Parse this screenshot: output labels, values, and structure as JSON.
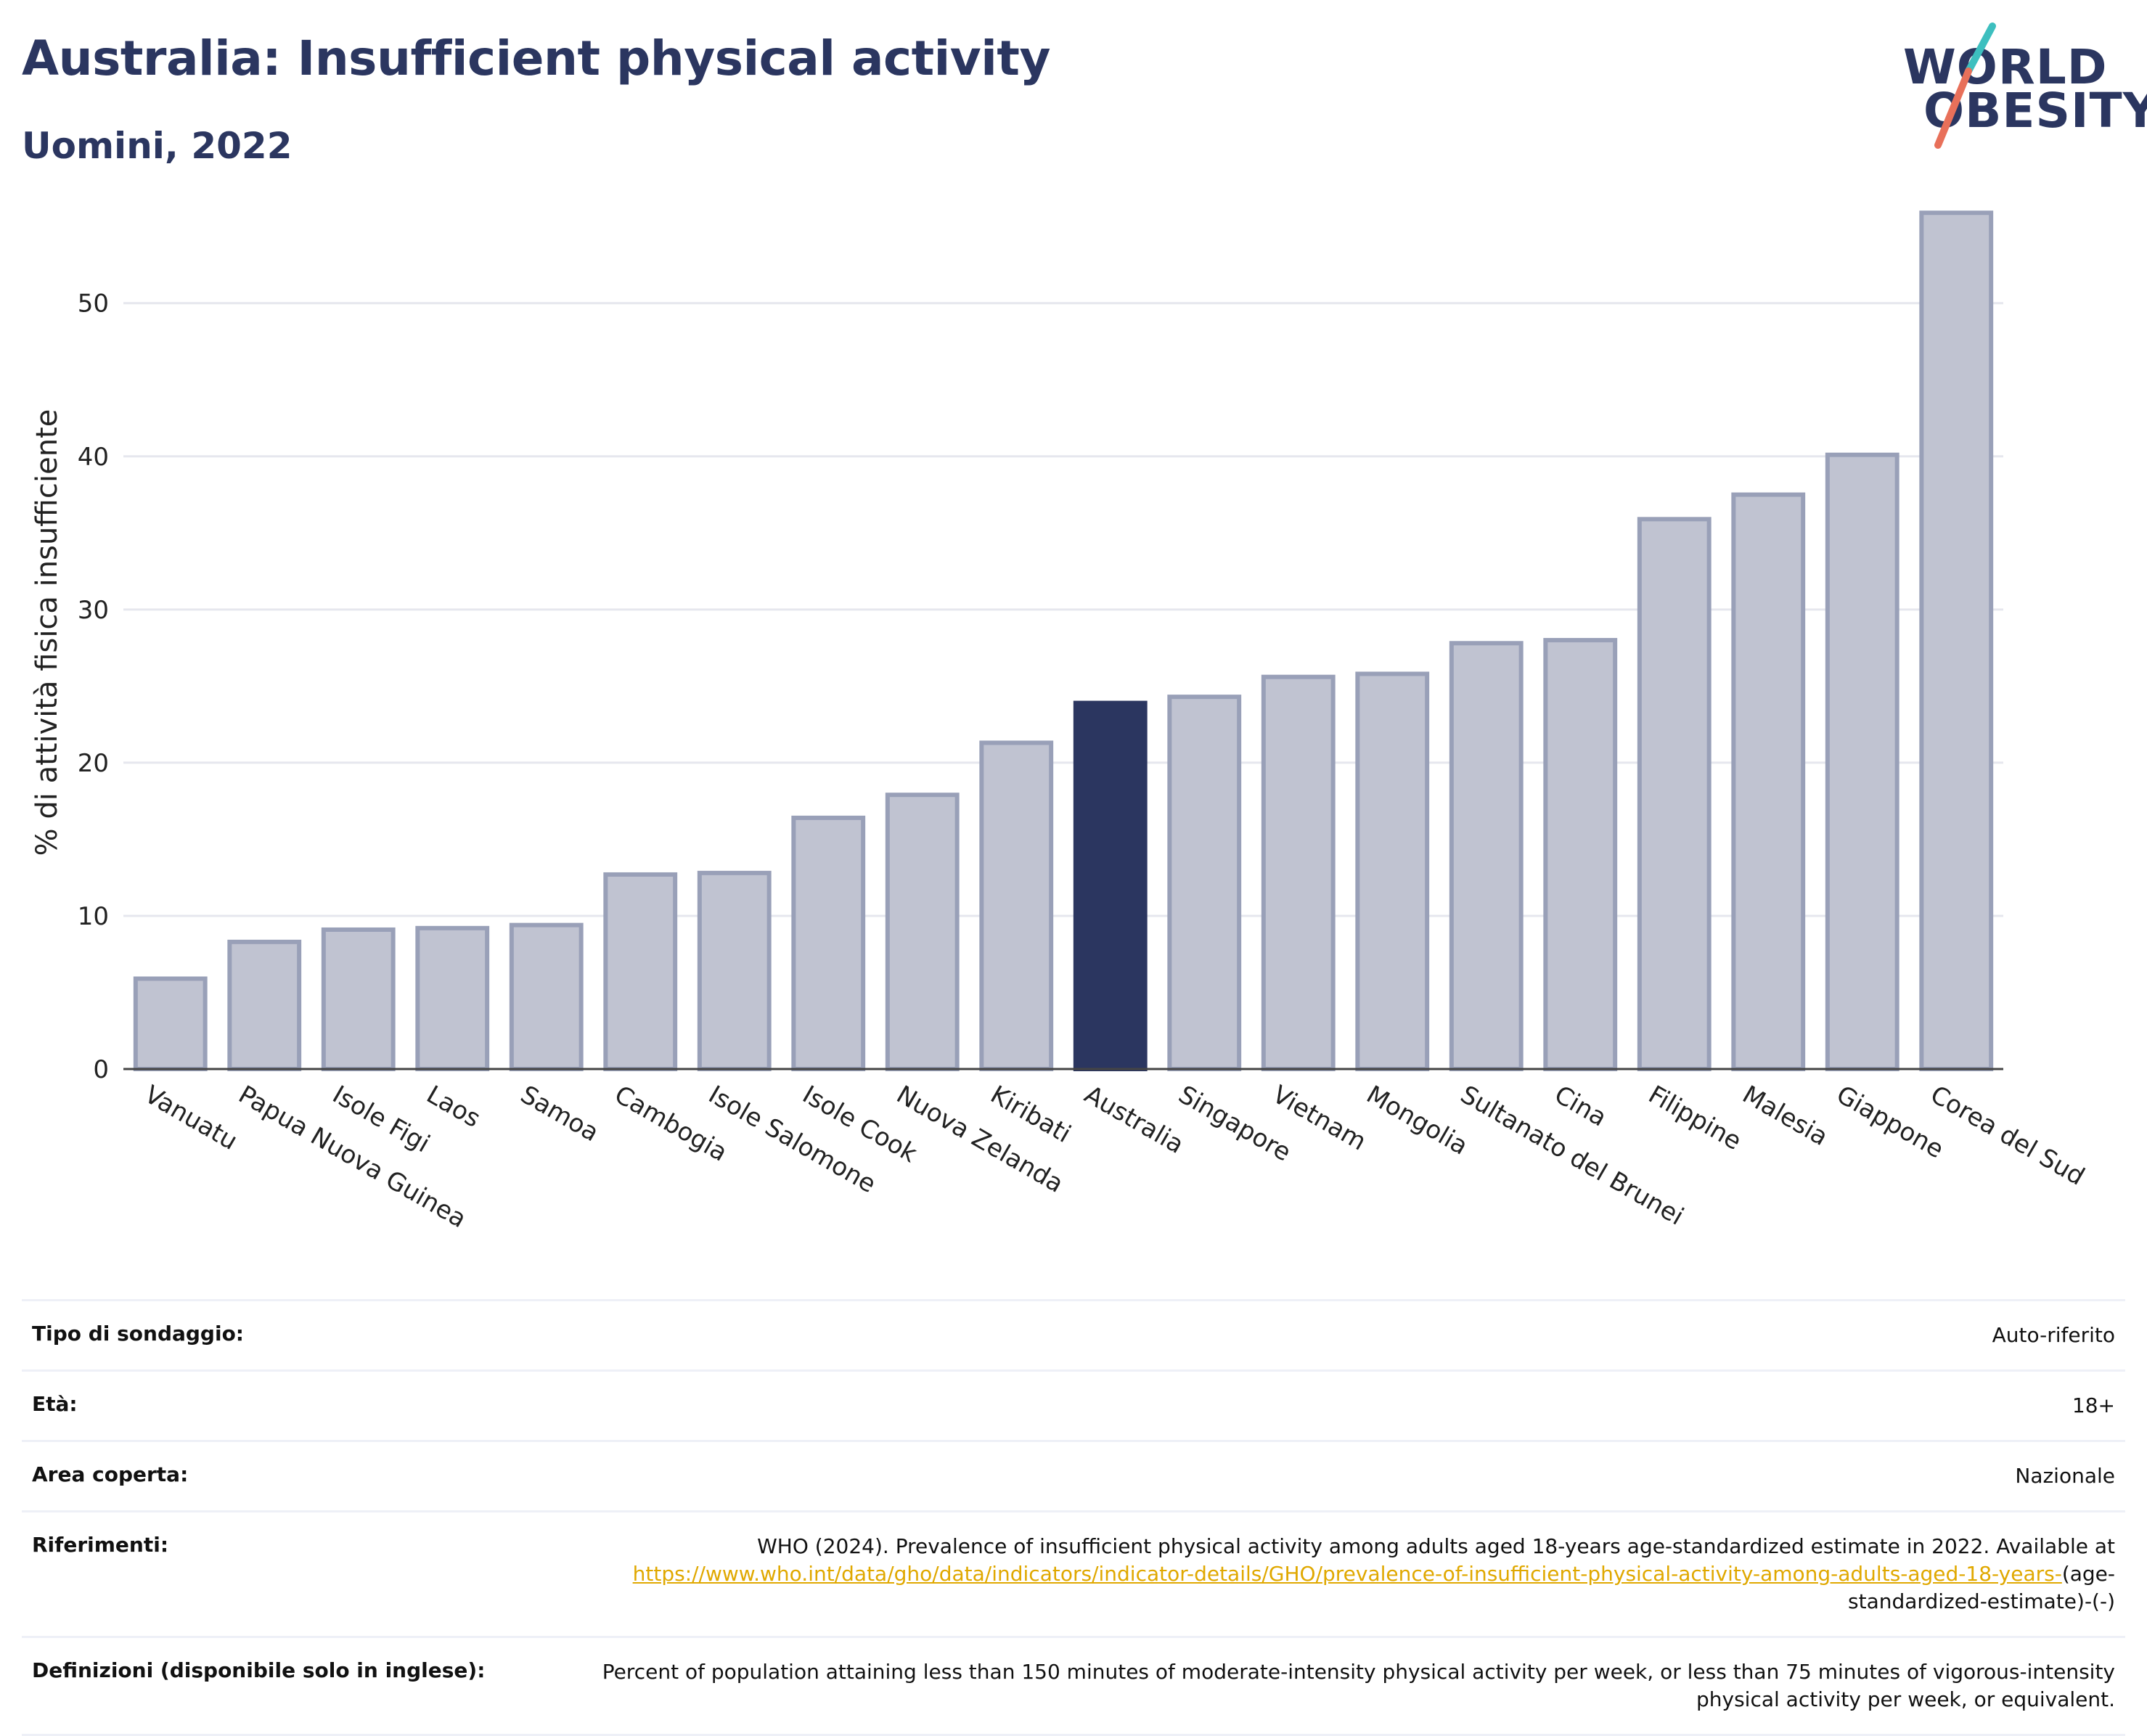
{
  "header": {
    "title": "Australia: Insufficient physical activity",
    "subtitle": "Uomini, 2022"
  },
  "logo": {
    "line1": "WORLD",
    "line2": "OBESITY",
    "colors": {
      "text": "#2b3660",
      "slash_top": "#3dbfbf",
      "slash_bottom": "#e8705a"
    }
  },
  "colors": {
    "highlight": "#2b3660",
    "bar": "#c0c3d1",
    "bar_stroke": "#99a0b8",
    "grid": "#e6e7ee"
  },
  "chart_data": {
    "type": "bar",
    "ylabel": "% di attività fisica insufficiente",
    "xlabel": "",
    "ylim": [
      0,
      57
    ],
    "yticks": [
      0,
      10,
      20,
      30,
      40,
      50
    ],
    "grid": true,
    "highlight": "Australia",
    "categories": [
      "Vanuatu",
      "Papua Nuova Guinea",
      "Isole Figi",
      "Laos",
      "Samoa",
      "Cambogia",
      "Isole Salomone",
      "Isole Cook",
      "Nuova Zelanda",
      "Kiribati",
      "Australia",
      "Singapore",
      "Vietnam",
      "Mongolia",
      "Sultanato del Brunei",
      "Cina",
      "Filippine",
      "Malesia",
      "Giappone",
      "Corea del Sud"
    ],
    "values": [
      5.9,
      8.3,
      9.1,
      9.2,
      9.4,
      12.7,
      12.8,
      16.4,
      17.9,
      21.3,
      23.9,
      24.3,
      25.6,
      25.8,
      27.8,
      28.0,
      35.9,
      37.5,
      40.1,
      55.9
    ]
  },
  "info": {
    "rows": [
      {
        "key": "Tipo di sondaggio:",
        "value": "Auto-riferito"
      },
      {
        "key": "Età:",
        "value": "18+"
      },
      {
        "key": "Area coperta:",
        "value": "Nazionale"
      }
    ],
    "ref_key": "Riferimenti:",
    "ref_text": "WHO (2024). Prevalence of insufficient physical activity among adults aged 18-years age-standardized estimate in 2022. Available at ",
    "ref_link": "https://www.who.int/data/gho/data/indicators/indicator-details/GHO/prevalence-of-insufficient-physical-activity-among-adults-aged-18-years-",
    "ref_tail": "(age-standardized-estimate)-(-)",
    "def_key": "Definizioni (disponibile solo in inglese):",
    "def_text": "Percent of population attaining less than 150 minutes of moderate-intensity physical activity per week, or less than 75 minutes of vigorous-intensity physical activity per week, or equivalent."
  }
}
